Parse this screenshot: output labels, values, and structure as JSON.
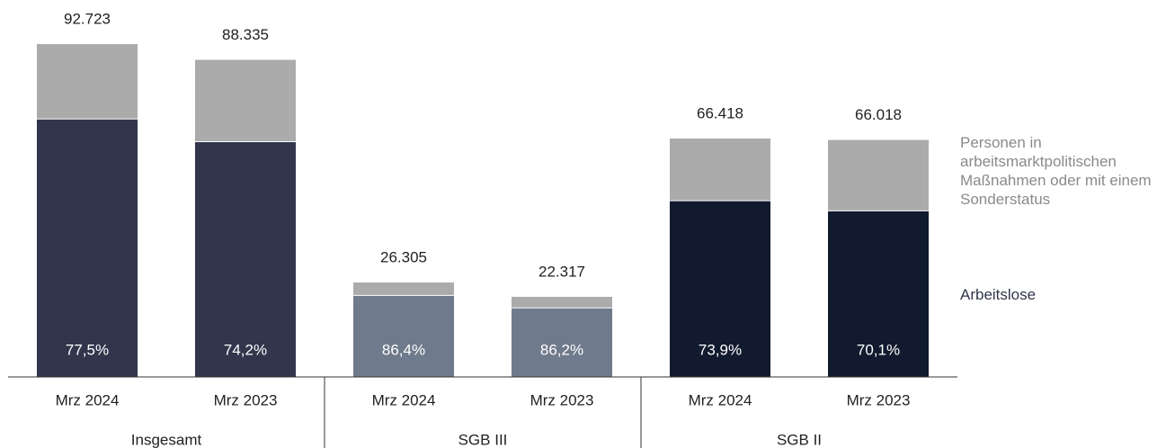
{
  "chart_data": {
    "type": "stacked-bar",
    "categories": [
      "Mrz 2024",
      "Mrz 2023",
      "Mrz 2024",
      "Mrz 2023",
      "Mrz 2024",
      "Mrz 2023"
    ],
    "groups": [
      {
        "name": "Insgesamt",
        "span": 2
      },
      {
        "name": "SGB III",
        "span": 2
      },
      {
        "name": "SGB II",
        "span": 2
      }
    ],
    "series": [
      {
        "name": "Arbeitslose",
        "colors": [
          "#31364c",
          "#31364c",
          "#6f7a8c",
          "#6f7a8c",
          "#111a2e",
          "#111a2e"
        ],
        "values": [
          71860,
          65545,
          22728,
          19237,
          49083,
          46279
        ]
      },
      {
        "name": "Personen in arbeitsmarktpolitischen Maßnahmen oder mit einem Sonderstatus",
        "color": "#ababab",
        "values": [
          20863,
          22790,
          3577,
          3080,
          17335,
          19739
        ]
      }
    ],
    "totals": {
      "values": [
        92723,
        88335,
        26305,
        22317,
        66418,
        66018
      ],
      "value_labels": [
        "92.723",
        "88.335",
        "26.305",
        "22.317",
        "66.418",
        "66.018"
      ]
    },
    "shares": {
      "values": [
        77.5,
        74.2,
        86.4,
        86.2,
        73.9,
        70.1
      ],
      "value_labels": [
        "77,5%",
        "74,2%",
        "86,4%",
        "86,2%",
        "73,9%",
        "70,1%"
      ]
    },
    "ylim": [
      0,
      100000
    ]
  }
}
